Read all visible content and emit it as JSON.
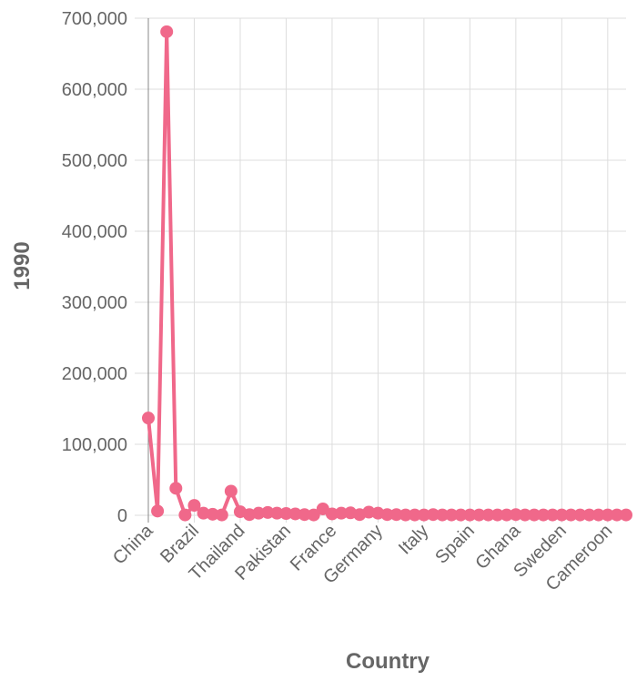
{
  "chart_data": {
    "type": "line",
    "title": "",
    "xlabel": "Country",
    "ylabel": "1990",
    "ylim": [
      0,
      700000
    ],
    "y_ticks": [
      0,
      100000,
      200000,
      300000,
      400000,
      500000,
      600000,
      700000
    ],
    "y_tick_labels": [
      "0",
      "100,000",
      "200,000",
      "300,000",
      "400,000",
      "500,000",
      "600,000",
      "700,000"
    ],
    "x_tick_labels": [
      {
        "index": 0,
        "label": "China"
      },
      {
        "index": 5,
        "label": "Brazil"
      },
      {
        "index": 10,
        "label": "Thailand"
      },
      {
        "index": 15,
        "label": "Pakistan"
      },
      {
        "index": 20,
        "label": "France"
      },
      {
        "index": 25,
        "label": "Germany"
      },
      {
        "index": 30,
        "label": "Italy"
      },
      {
        "index": 35,
        "label": "Spain"
      },
      {
        "index": 40,
        "label": "Ghana"
      },
      {
        "index": 45,
        "label": "Sweden"
      },
      {
        "index": 50,
        "label": "Cameroon"
      }
    ],
    "series": [
      {
        "name": "1990",
        "color": "#f0688a",
        "values": [
          137000,
          6000,
          681000,
          38000,
          500,
          14000,
          3000,
          1500,
          500,
          34000,
          5000,
          1000,
          3000,
          4000,
          3000,
          2500,
          2000,
          1000,
          500,
          9000,
          2000,
          3000,
          3500,
          1000,
          4500,
          3000,
          1000,
          1000,
          500,
          500,
          500,
          1000,
          500,
          500,
          500,
          500,
          500,
          500,
          500,
          500,
          1000,
          500,
          500,
          500,
          500,
          500,
          500,
          500,
          500,
          500,
          500,
          500,
          500
        ]
      }
    ]
  }
}
